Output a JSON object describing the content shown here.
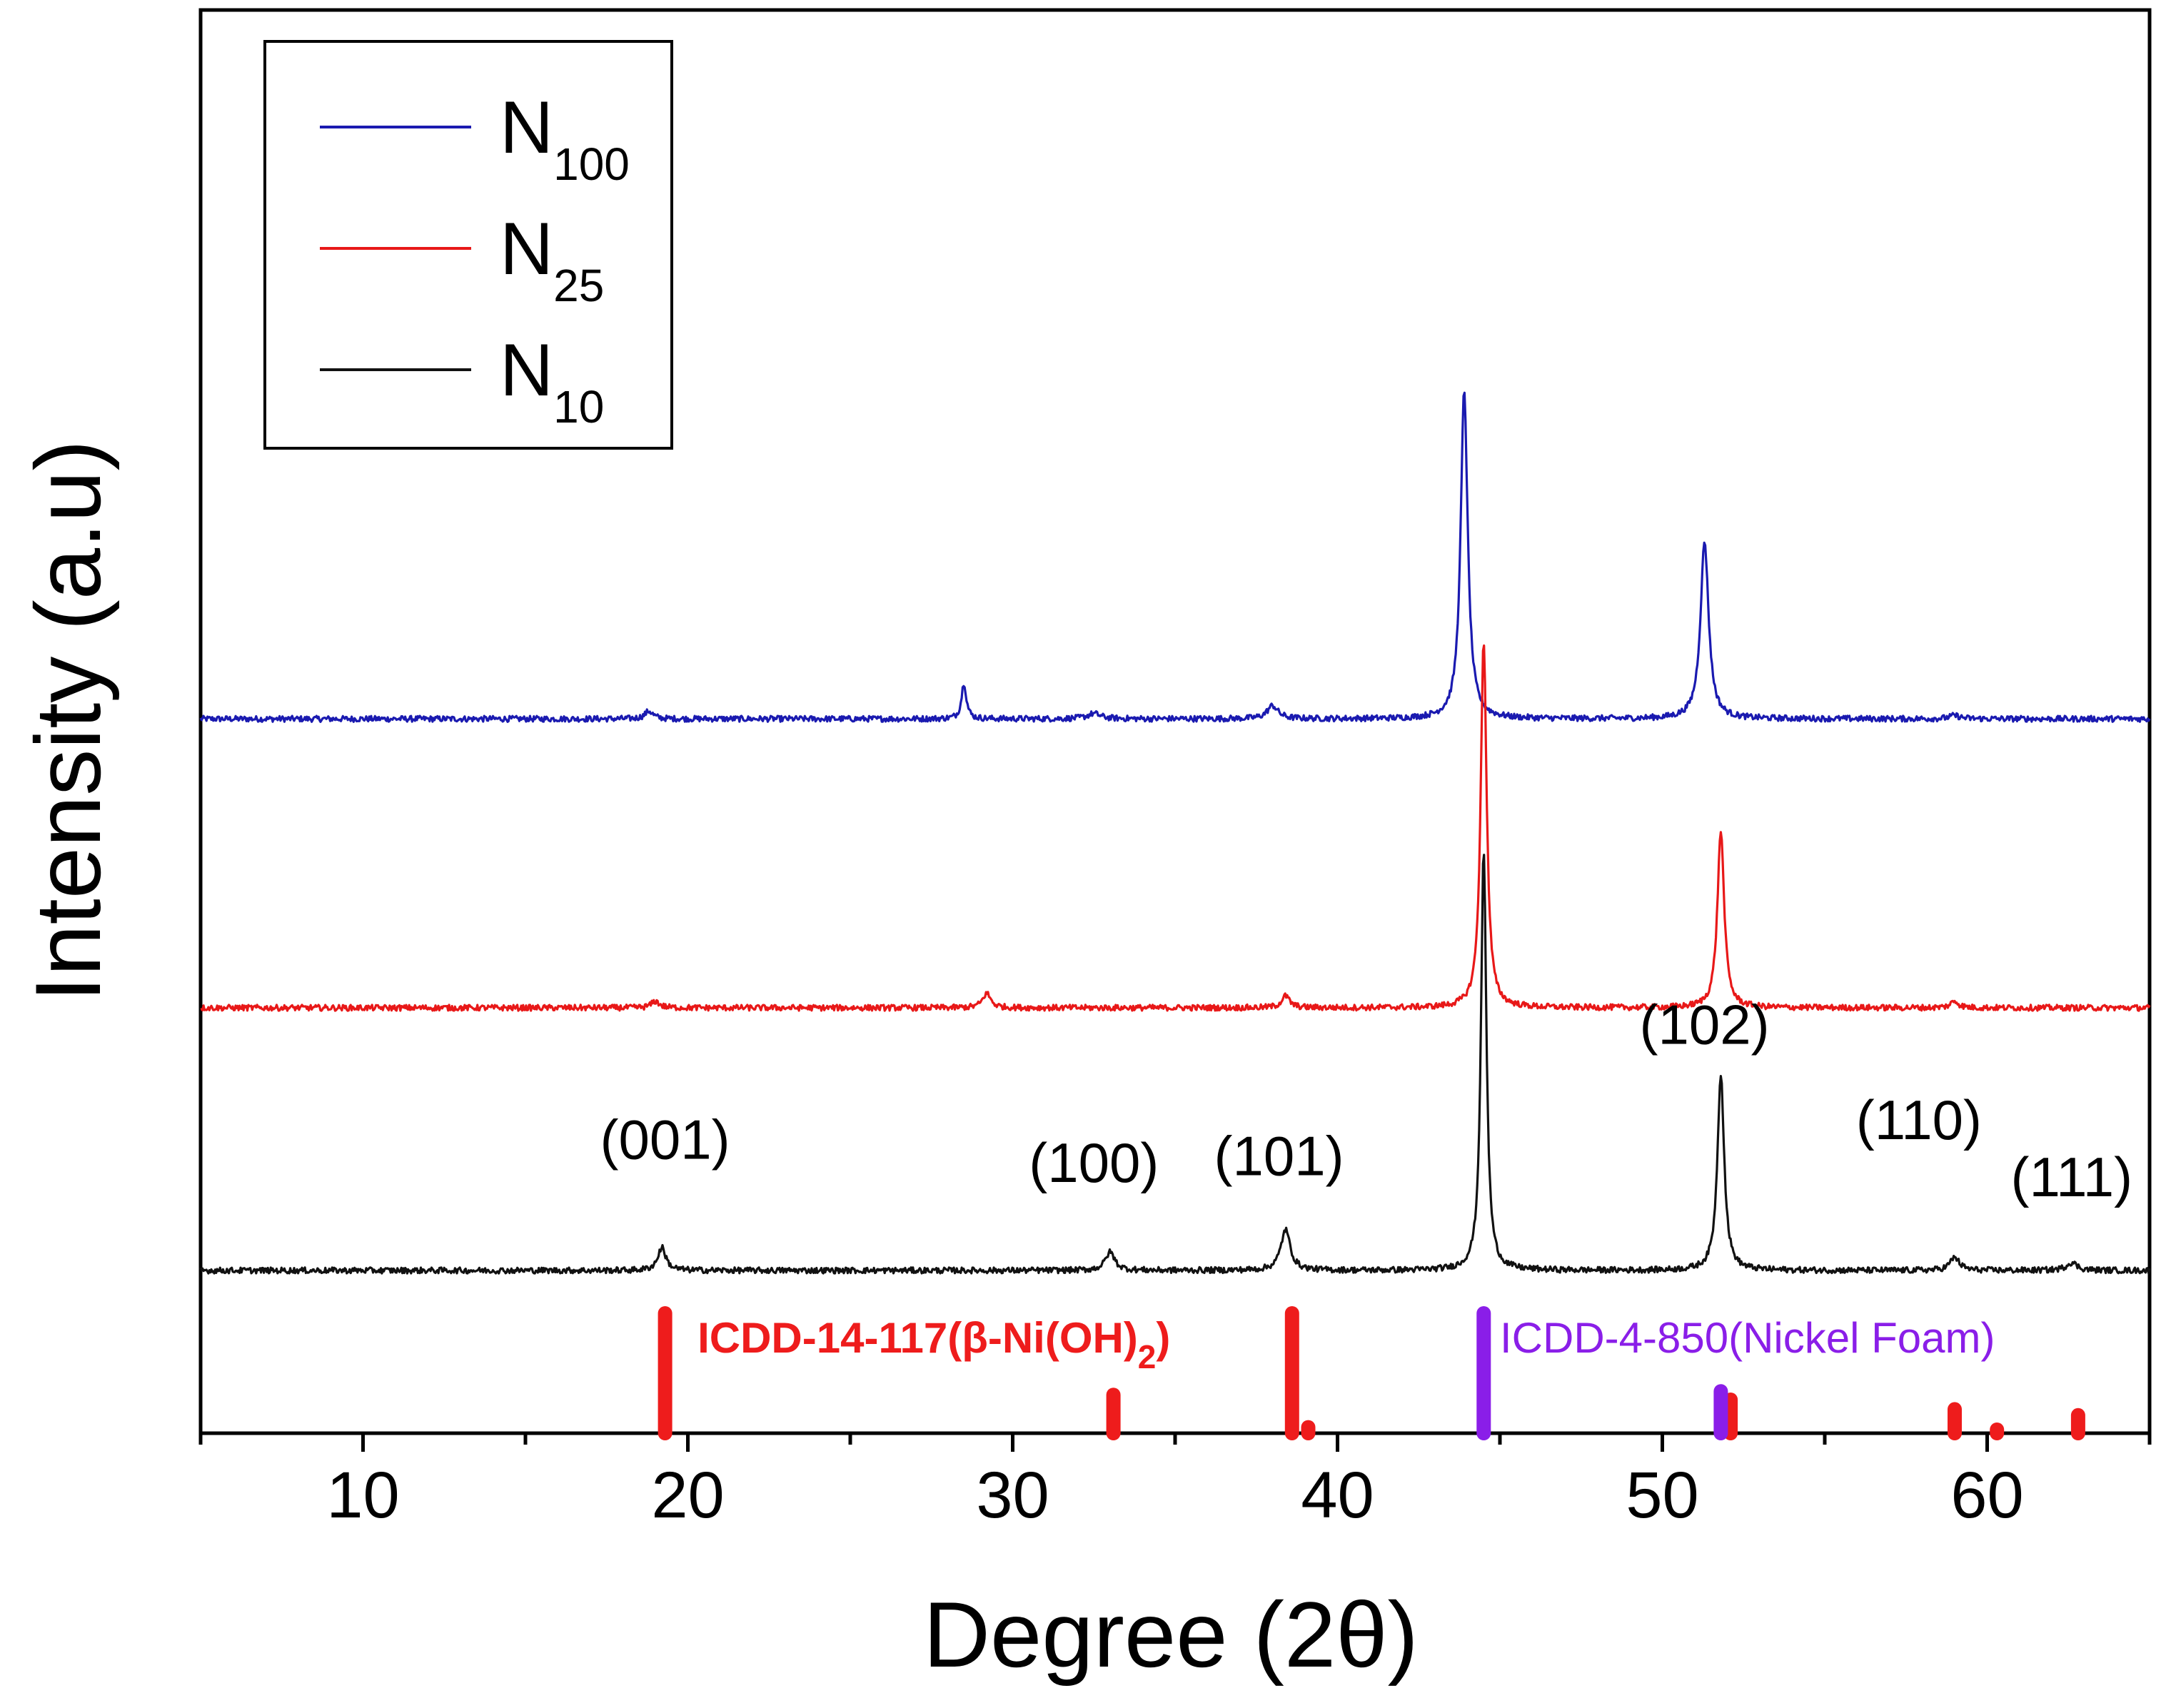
{
  "chart_data": {
    "type": "line",
    "title": "",
    "xlabel": "Degree (2θ)",
    "ylabel": "Intensity (a.u)",
    "xlim": [
      5,
      65
    ],
    "xticks": [
      10,
      20,
      30,
      40,
      50,
      60
    ],
    "grid": false,
    "legend_position": "top-left",
    "series": [
      {
        "name": "N100",
        "name_main": "N",
        "name_sub": "100",
        "color": "#1a1ab0",
        "baseline": 8.4,
        "noise": 0.045,
        "peaks": [
          {
            "x": 18.8,
            "h": 0.12,
            "w": 0.3
          },
          {
            "x": 28.5,
            "h": 0.55,
            "w": 0.18
          },
          {
            "x": 32.5,
            "h": 0.08,
            "w": 0.5
          },
          {
            "x": 38.0,
            "h": 0.2,
            "w": 0.4
          },
          {
            "x": 43.9,
            "h": 5.0,
            "w": 0.26
          },
          {
            "x": 51.3,
            "h": 2.7,
            "w": 0.3
          },
          {
            "x": 59.0,
            "h": 0.05,
            "w": 0.4
          }
        ]
      },
      {
        "name": "N25",
        "name_main": "N",
        "name_sub": "25",
        "color": "#e81818",
        "baseline": 4.0,
        "noise": 0.045,
        "peaks": [
          {
            "x": 19.0,
            "h": 0.1,
            "w": 0.3
          },
          {
            "x": 29.2,
            "h": 0.22,
            "w": 0.3
          },
          {
            "x": 38.4,
            "h": 0.18,
            "w": 0.3
          },
          {
            "x": 44.5,
            "h": 5.6,
            "w": 0.22
          },
          {
            "x": 51.8,
            "h": 2.7,
            "w": 0.25
          },
          {
            "x": 59.0,
            "h": 0.1,
            "w": 0.3
          }
        ]
      },
      {
        "name": "N10",
        "name_main": "N",
        "name_sub": "10",
        "color": "#111111",
        "baseline": 0,
        "noise": 0.045,
        "peaks": [
          {
            "x": 19.2,
            "h": 0.35,
            "w": 0.3
          },
          {
            "x": 33.0,
            "h": 0.28,
            "w": 0.35
          },
          {
            "x": 38.4,
            "h": 0.62,
            "w": 0.35
          },
          {
            "x": 44.5,
            "h": 6.4,
            "w": 0.2
          },
          {
            "x": 51.8,
            "h": 3.0,
            "w": 0.25
          },
          {
            "x": 59.0,
            "h": 0.2,
            "w": 0.35
          },
          {
            "x": 62.6,
            "h": 0.12,
            "w": 0.4
          }
        ]
      }
    ],
    "annotations": [
      {
        "label": "(001)",
        "x": 19.3,
        "y": 1.7
      },
      {
        "label": "(100)",
        "x": 32.5,
        "y": 1.35
      },
      {
        "label": "(101)",
        "x": 38.2,
        "y": 1.45
      },
      {
        "label": "(102)",
        "x": 51.3,
        "y": 3.45
      },
      {
        "label": "(110)",
        "x": 57.9,
        "y": 2.0
      },
      {
        "label": "(111)",
        "x": 62.6,
        "y": 1.13
      }
    ],
    "reference_patterns": [
      {
        "label_main": "ICDD-14-117(β-Ni(OH)",
        "label_sub": "2",
        "label_close": ")",
        "color": "#ee1c1c",
        "label_x": 20.3,
        "label_y": -1.25,
        "sticks": [
          {
            "x": 19.3,
            "h": 1.0
          },
          {
            "x": 33.1,
            "h": 0.32
          },
          {
            "x": 38.6,
            "h": 1.0
          },
          {
            "x": 39.1,
            "h": 0.05
          },
          {
            "x": 52.1,
            "h": 0.28
          },
          {
            "x": 59.0,
            "h": 0.2
          },
          {
            "x": 60.3,
            "h": 0.03
          },
          {
            "x": 62.8,
            "h": 0.15
          }
        ]
      },
      {
        "label_main": "ICDD-4-850(Nickel Foam)",
        "label_sub": "",
        "label_close": "",
        "color": "#8a1ee8",
        "label_x": 45.0,
        "label_y": -1.25,
        "sticks": [
          {
            "x": 44.5,
            "h": 1.0
          },
          {
            "x": 51.8,
            "h": 0.35
          }
        ]
      }
    ],
    "reference_ylim": [
      0,
      1
    ]
  }
}
